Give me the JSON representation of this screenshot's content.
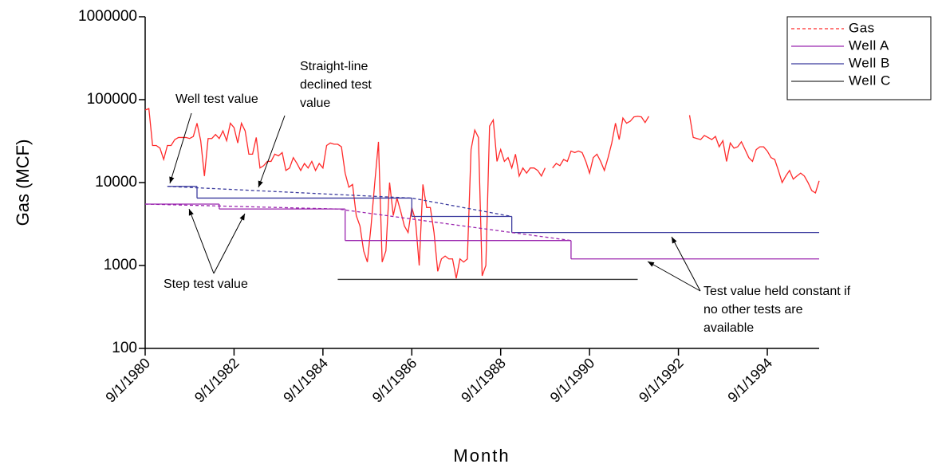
{
  "chart_data": {
    "type": "line",
    "log_y": true,
    "xlabel": "Month",
    "ylabel": "Gas (MCF)",
    "xlim": [
      "9/1/1980",
      "11/1/1995"
    ],
    "xticks": [
      "9/1/1980",
      "9/1/1982",
      "9/1/1984",
      "9/1/1986",
      "9/1/1988",
      "9/1/1990",
      "9/1/1992",
      "9/1/1994"
    ],
    "ylim": [
      100,
      1000000
    ],
    "yticks": [
      100,
      1000,
      10000,
      100000,
      1000000
    ],
    "legend": "top-right",
    "series": [
      {
        "name": "Gas",
        "color": "#ff2a2a",
        "legend_dashed": true,
        "x": [
          "9/1/1980",
          "10/1/1980",
          "11/1/1980",
          "12/1/1980",
          "1/1/1981",
          "2/1/1981",
          "3/1/1981",
          "4/1/1981",
          "5/1/1981",
          "6/1/1981",
          "7/1/1981",
          "8/1/1981",
          "9/1/1981",
          "10/1/1981",
          "11/1/1981",
          "12/1/1981",
          "1/1/1982",
          "2/1/1982",
          "3/1/1982",
          "4/1/1982",
          "5/1/1982",
          "6/1/1982",
          "7/1/1982",
          "8/1/1982",
          "9/1/1982",
          "10/1/1982",
          "11/1/1982",
          "12/1/1982",
          "1/1/1983",
          "2/1/1983",
          "3/1/1983",
          "4/1/1983",
          "5/1/1983",
          "6/1/1983",
          "7/1/1983",
          "8/1/1983",
          "9/1/1983",
          "10/1/1983",
          "11/1/1983",
          "12/1/1983",
          "1/1/1984",
          "2/1/1984",
          "3/1/1984",
          "4/1/1984",
          "5/1/1984",
          "6/1/1984",
          "7/1/1984",
          "8/1/1984",
          "9/1/1984",
          "10/1/1984",
          "11/1/1984",
          "12/1/1984",
          "1/1/1985",
          "2/1/1985",
          "3/1/1985",
          "4/1/1985",
          "5/1/1985",
          "6/1/1985",
          "7/1/1985",
          "8/1/1985",
          "9/1/1985",
          "10/1/1985",
          "11/1/1985",
          "12/1/1985",
          "1/1/1986",
          "2/1/1986",
          "3/1/1986",
          "4/1/1986",
          "5/1/1986",
          "6/1/1986",
          "7/1/1986",
          "8/1/1986",
          "9/1/1986",
          "10/1/1986",
          "11/1/1986",
          "12/1/1986",
          "1/1/1987",
          "2/1/1987",
          "3/1/1987",
          "4/1/1987",
          "5/1/1987",
          "6/1/1987",
          "7/1/1987",
          "8/1/1987",
          "9/1/1987",
          "10/1/1987",
          "11/1/1987",
          "12/1/1987",
          "1/1/1988",
          "2/1/1988",
          "3/1/1988",
          "4/1/1988",
          "5/1/1988",
          "6/1/1988",
          "7/1/1988",
          "8/1/1988",
          "9/1/1988",
          "10/1/1988",
          "11/1/1988",
          "12/1/1988",
          "1/1/1989",
          "2/1/1989",
          "3/1/1989",
          "4/1/1989",
          "5/1/1989",
          "6/1/1989",
          "7/1/1989",
          "8/1/1989",
          "9/1/1989",
          "10/1/1989",
          "11/1/1989",
          "12/1/1989",
          "1/1/1990",
          "2/1/1990",
          "3/1/1990",
          "4/1/1990",
          "5/1/1990",
          "6/1/1990",
          "7/1/1990",
          "8/1/1990",
          "9/1/1990",
          "10/1/1990",
          "11/1/1990",
          "12/1/1990",
          "1/1/1991",
          "2/1/1991",
          "3/1/1991",
          "4/1/1991",
          "5/1/1991",
          "6/1/1991",
          "7/1/1991",
          "8/1/1991",
          "9/1/1991",
          "10/1/1991",
          "11/1/1991",
          "12/1/1991",
          "1/1/1992",
          "2/1/1992",
          "3/1/1992",
          "4/1/1992",
          "5/1/1992",
          "6/1/1992",
          "7/1/1992",
          "8/1/1992",
          "9/1/1992",
          "10/1/1992",
          "11/1/1992",
          "12/1/1992",
          "1/1/1993",
          "2/1/1993",
          "3/1/1993",
          "4/1/1993",
          "5/1/1993",
          "6/1/1993",
          "7/1/1993",
          "8/1/1993",
          "9/1/1993",
          "10/1/1993",
          "11/1/1993",
          "12/1/1993",
          "1/1/1994",
          "2/1/1994",
          "3/1/1994",
          "4/1/1994",
          "5/1/1994",
          "6/1/1994",
          "7/1/1994",
          "8/1/1994",
          "9/1/1994",
          "10/1/1994",
          "11/1/1994",
          "12/1/1994",
          "1/1/1995",
          "2/1/1995",
          "3/1/1995",
          "4/1/1995",
          "5/1/1995",
          "6/1/1995",
          "7/1/1995",
          "8/1/1995",
          "9/1/1995",
          "10/1/1995",
          "11/1/1995"
        ],
        "values": [
          75000,
          78000,
          28000,
          28000,
          26000,
          19000,
          28000,
          28000,
          33000,
          35000,
          35000,
          35000,
          34000,
          36000,
          52000,
          32000,
          12000,
          34000,
          34000,
          38000,
          34000,
          42000,
          32000,
          52000,
          46000,
          30000,
          52000,
          42000,
          22000,
          22000,
          35000,
          15000,
          16000,
          18000,
          18000,
          22000,
          21000,
          23000,
          14000,
          15000,
          20000,
          17000,
          14000,
          17000,
          15000,
          18000,
          14000,
          17000,
          15000,
          28000,
          30000,
          29000,
          29000,
          27000,
          13000,
          8800,
          9500,
          4000,
          3000,
          1500,
          1100,
          3000,
          10000,
          31000,
          1100,
          1500,
          10000,
          4000,
          6500,
          4500,
          3000,
          2500,
          5000,
          3500,
          1000,
          9500,
          5000,
          5000,
          2500,
          850,
          1200,
          1300,
          1200,
          1200,
          700,
          1200,
          1100,
          1200,
          25000,
          43000,
          35000,
          750,
          1000,
          48000,
          57000,
          18000,
          25000,
          18000,
          20000,
          15000,
          22000,
          12000,
          15000,
          13000,
          15000,
          15000,
          14000,
          12000,
          15000,
          null,
          15000,
          17000,
          16000,
          19000,
          18000,
          24000,
          23000,
          24000,
          23000,
          18000,
          13000,
          20000,
          22000,
          18000,
          14000,
          20000,
          30000,
          52000,
          33000,
          60000,
          52000,
          55000,
          62000,
          63000,
          62000,
          53000,
          63000,
          null,
          null,
          null,
          null,
          null,
          null,
          null,
          null,
          null,
          null,
          65000,
          35000,
          34000,
          33000,
          37000,
          35000,
          33000,
          36000,
          27000,
          32000,
          18000,
          30000,
          26000,
          27000,
          31000,
          25000,
          20000,
          18000,
          25000,
          27000,
          27000,
          24000,
          20000,
          19000,
          14000,
          10000,
          12000,
          14000,
          11000,
          12000,
          13000,
          12000,
          10000,
          8000,
          7500,
          10500
        ]
      },
      {
        "name": "Well A",
        "color": "#9b27af",
        "step": true,
        "x": [
          "9/1/1980",
          "5/1/1982",
          "3/1/1985",
          "4/1/1990",
          "11/1/1995"
        ],
        "values": [
          5500,
          4800,
          2000,
          1200,
          1200
        ]
      },
      {
        "name": "Well B",
        "color": "#3b3b9e",
        "step": true,
        "x": [
          "3/1/1981",
          "11/1/1981",
          "9/1/1986",
          "12/1/1988",
          "11/1/1995"
        ],
        "values": [
          9000,
          6500,
          3900,
          2500,
          2500
        ]
      },
      {
        "name": "Well C",
        "color": "#333333",
        "step": true,
        "x": [
          "1/1/1985",
          "10/1/1991"
        ],
        "values": [
          680,
          680
        ]
      }
    ],
    "declined_lines": [
      {
        "color": "#9b27af",
        "x": [
          "9/1/1980",
          "1/1/1985",
          "4/1/1990"
        ],
        "values": [
          5500,
          4800,
          2000
        ]
      },
      {
        "color": "#3b3b9e",
        "x": [
          "3/1/1981",
          "9/1/1986",
          "12/1/1988"
        ],
        "values": [
          9000,
          6500,
          3900
        ]
      }
    ],
    "annotations": [
      {
        "lines": [
          "Well test value"
        ]
      },
      {
        "lines": [
          "Straight-line",
          "declined test",
          "value"
        ]
      },
      {
        "lines": [
          "Step test value"
        ]
      },
      {
        "lines": [
          "Test value held constant if",
          "no other tests are",
          "available"
        ]
      }
    ]
  }
}
